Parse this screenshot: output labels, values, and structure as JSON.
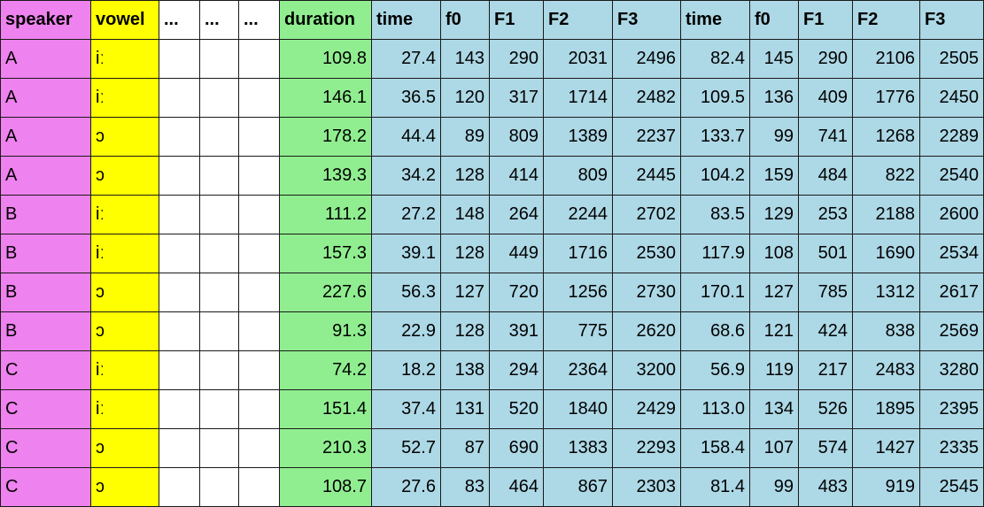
{
  "colors": {
    "speaker": "#ee82ee",
    "vowel": "#ffff00",
    "blank": "#ffffff",
    "duration": "#90ee90",
    "acoustic": "#add8e6"
  },
  "headers": [
    "speaker",
    "vowel",
    "...",
    "...",
    "...",
    "duration",
    "time",
    "f0",
    "F1",
    "F2",
    "F3",
    "time",
    "f0",
    "F1",
    "F2",
    "F3"
  ],
  "rows": [
    [
      "A",
      "iː",
      "",
      "",
      "",
      "109.8",
      "27.4",
      "143",
      "290",
      "2031",
      "2496",
      "82.4",
      "145",
      "290",
      "2106",
      "2505"
    ],
    [
      "A",
      "iː",
      "",
      "",
      "",
      "146.1",
      "36.5",
      "120",
      "317",
      "1714",
      "2482",
      "109.5",
      "136",
      "409",
      "1776",
      "2450"
    ],
    [
      "A",
      "ɔ",
      "",
      "",
      "",
      "178.2",
      "44.4",
      "89",
      "809",
      "1389",
      "2237",
      "133.7",
      "99",
      "741",
      "1268",
      "2289"
    ],
    [
      "A",
      "ɔ",
      "",
      "",
      "",
      "139.3",
      "34.2",
      "128",
      "414",
      "809",
      "2445",
      "104.2",
      "159",
      "484",
      "822",
      "2540"
    ],
    [
      "B",
      "iː",
      "",
      "",
      "",
      "111.2",
      "27.2",
      "148",
      "264",
      "2244",
      "2702",
      "83.5",
      "129",
      "253",
      "2188",
      "2600"
    ],
    [
      "B",
      "iː",
      "",
      "",
      "",
      "157.3",
      "39.1",
      "128",
      "449",
      "1716",
      "2530",
      "117.9",
      "108",
      "501",
      "1690",
      "2534"
    ],
    [
      "B",
      "ɔ",
      "",
      "",
      "",
      "227.6",
      "56.3",
      "127",
      "720",
      "1256",
      "2730",
      "170.1",
      "127",
      "785",
      "1312",
      "2617"
    ],
    [
      "B",
      "ɔ",
      "",
      "",
      "",
      "91.3",
      "22.9",
      "128",
      "391",
      "775",
      "2620",
      "68.6",
      "121",
      "424",
      "838",
      "2569"
    ],
    [
      "C",
      "iː",
      "",
      "",
      "",
      "74.2",
      "18.2",
      "138",
      "294",
      "2364",
      "3200",
      "56.9",
      "119",
      "217",
      "2483",
      "3280"
    ],
    [
      "C",
      "iː",
      "",
      "",
      "",
      "151.4",
      "37.4",
      "131",
      "520",
      "1840",
      "2429",
      "113.0",
      "134",
      "526",
      "1895",
      "2395"
    ],
    [
      "C",
      "ɔ",
      "",
      "",
      "",
      "210.3",
      "52.7",
      "87",
      "690",
      "1383",
      "2293",
      "158.4",
      "107",
      "574",
      "1427",
      "2335"
    ],
    [
      "C",
      "ɔ",
      "",
      "",
      "",
      "108.7",
      "27.6",
      "83",
      "464",
      "867",
      "2303",
      "81.4",
      "99",
      "483",
      "919",
      "2545"
    ]
  ]
}
